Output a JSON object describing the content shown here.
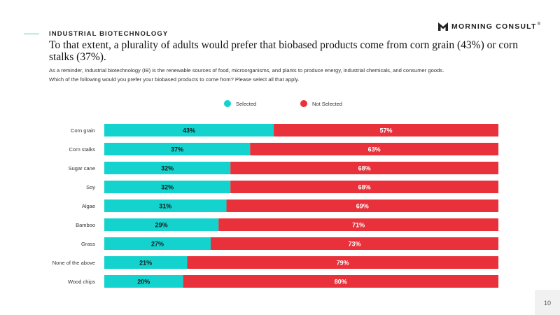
{
  "header": {
    "section_label": "INDUSTRIAL BIOTECHNOLOGY",
    "brand": "MORNING CONSULT",
    "brand_mark": "®"
  },
  "headline": "To that extent, a plurality of adults would prefer that biobased products come from corn grain (43%) or corn stalks (37%).",
  "notes": {
    "reminder": "As a reminder, Industrial biotechnology (IB) is the renewable sources of food, microorganisms, and plants to produce energy, industrial chemicals, and consumer goods.",
    "question": "Which of the following would you prefer your biobased products to come from? Please select all that apply."
  },
  "page_number": "10",
  "chart_data": {
    "type": "bar",
    "orientation": "horizontal",
    "stacked": true,
    "categories": [
      "Corn grain",
      "Corn stalks",
      "Sugar cane",
      "Soy",
      "Algae",
      "Bamboo",
      "Grass",
      "None of the above",
      "Wood chips"
    ],
    "series": [
      {
        "name": "Selected",
        "color": "#14d2cd",
        "values": [
          43,
          37,
          32,
          32,
          31,
          29,
          27,
          21,
          20
        ]
      },
      {
        "name": "Not Selected",
        "color": "#e8313a",
        "values": [
          57,
          63,
          68,
          68,
          69,
          71,
          73,
          79,
          80
        ]
      }
    ],
    "value_suffix": "%",
    "xlim": [
      0,
      100
    ],
    "legend_position": "top",
    "grid": false
  }
}
